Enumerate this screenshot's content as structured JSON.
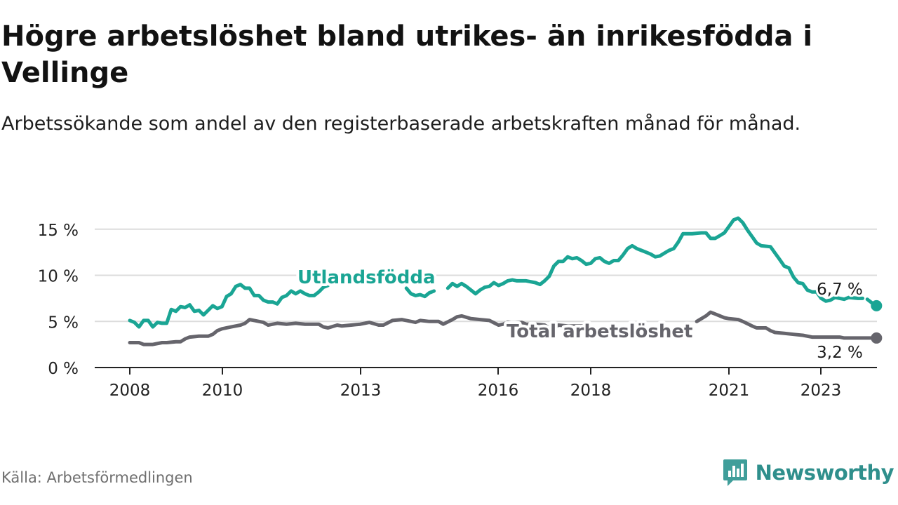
{
  "title": "Högre arbetslöshet bland utrikes- än inrikesfödda i Vellinge",
  "subtitle": "Arbetssökande som andel av den registerbaserade arbetskraften månad för månad.",
  "source": "Källa: Arbetsförmedlingen",
  "brand": "Newsworthy",
  "colors": {
    "foreign": "#1aa594",
    "total": "#66656c",
    "grid": "#dcdcdc",
    "axis": "#222222",
    "brand": "#2f8f8c"
  },
  "chart_data": {
    "type": "line",
    "title": "Högre arbetslöshet bland utrikes- än inrikesfödda i Vellinge",
    "xlabel": "",
    "ylabel": "",
    "ylim": [
      0,
      17
    ],
    "xlim": [
      2007.8,
      2024.0
    ],
    "yticks": [
      0,
      5,
      10,
      15
    ],
    "ytick_labels": [
      "0 %",
      "5 %",
      "10 %",
      "15 %"
    ],
    "xticks": [
      2008,
      2010,
      2013,
      2016,
      2018,
      2021,
      2023
    ],
    "xtick_labels": [
      "2008",
      "2010",
      "2013",
      "2016",
      "2018",
      "2021",
      "2023"
    ],
    "series": [
      {
        "name": "Utlandsfödda",
        "label": "Utlandsfödda",
        "color": "#1aa594",
        "end_label": "6,7 %",
        "segments": [
          [
            [
              2008.0,
              5.1
            ],
            [
              2008.1,
              4.9
            ],
            [
              2008.2,
              4.4
            ],
            [
              2008.3,
              5.1
            ],
            [
              2008.4,
              5.1
            ],
            [
              2008.5,
              4.4
            ],
            [
              2008.6,
              4.9
            ],
            [
              2008.7,
              4.8
            ],
            [
              2008.8,
              4.8
            ],
            [
              2008.9,
              6.3
            ],
            [
              2009.0,
              6.1
            ],
            [
              2009.1,
              6.6
            ],
            [
              2009.2,
              6.5
            ],
            [
              2009.3,
              6.8
            ],
            [
              2009.4,
              6.1
            ],
            [
              2009.5,
              6.2
            ],
            [
              2009.6,
              5.7
            ],
            [
              2009.8,
              6.7
            ],
            [
              2009.9,
              6.4
            ],
            [
              2010.0,
              6.6
            ],
            [
              2010.1,
              7.7
            ],
            [
              2010.2,
              8.0
            ],
            [
              2010.3,
              8.8
            ],
            [
              2010.4,
              9.0
            ],
            [
              2010.5,
              8.6
            ],
            [
              2010.6,
              8.6
            ],
            [
              2010.7,
              7.8
            ],
            [
              2010.8,
              7.8
            ],
            [
              2010.9,
              7.3
            ],
            [
              2011.0,
              7.1
            ],
            [
              2011.1,
              7.1
            ],
            [
              2011.2,
              6.9
            ],
            [
              2011.3,
              7.6
            ],
            [
              2011.4,
              7.8
            ],
            [
              2011.5,
              8.3
            ],
            [
              2011.6,
              8.0
            ],
            [
              2011.7,
              8.3
            ],
            [
              2011.8,
              8.0
            ],
            [
              2011.9,
              7.8
            ],
            [
              2012.0,
              7.8
            ],
            [
              2012.1,
              8.2
            ],
            [
              2012.2,
              8.7
            ],
            [
              2012.3,
              8.9
            ]
          ],
          [
            [
              2014.0,
              8.6
            ],
            [
              2014.1,
              8.0
            ],
            [
              2014.2,
              7.8
            ],
            [
              2014.3,
              7.9
            ],
            [
              2014.4,
              7.7
            ],
            [
              2014.5,
              8.1
            ],
            [
              2014.6,
              8.3
            ]
          ],
          [
            [
              2014.9,
              8.6
            ],
            [
              2015.0,
              9.1
            ],
            [
              2015.1,
              8.8
            ],
            [
              2015.2,
              9.1
            ],
            [
              2015.3,
              8.8
            ],
            [
              2015.4,
              8.4
            ],
            [
              2015.5,
              8.0
            ],
            [
              2015.6,
              8.4
            ],
            [
              2015.7,
              8.7
            ],
            [
              2015.8,
              8.8
            ],
            [
              2015.9,
              9.2
            ],
            [
              2016.0,
              8.9
            ],
            [
              2016.1,
              9.1
            ],
            [
              2016.2,
              9.4
            ],
            [
              2016.3,
              9.5
            ],
            [
              2016.4,
              9.4
            ],
            [
              2016.6,
              9.4
            ],
            [
              2016.8,
              9.2
            ],
            [
              2016.9,
              9.0
            ],
            [
              2017.0,
              9.4
            ],
            [
              2017.1,
              9.9
            ],
            [
              2017.2,
              11.0
            ],
            [
              2017.3,
              11.5
            ],
            [
              2017.4,
              11.5
            ],
            [
              2017.5,
              12.0
            ],
            [
              2017.6,
              11.8
            ],
            [
              2017.7,
              11.9
            ],
            [
              2017.8,
              11.6
            ],
            [
              2017.9,
              11.2
            ],
            [
              2018.0,
              11.3
            ],
            [
              2018.1,
              11.8
            ],
            [
              2018.2,
              11.9
            ],
            [
              2018.3,
              11.5
            ],
            [
              2018.4,
              11.3
            ],
            [
              2018.5,
              11.6
            ],
            [
              2018.6,
              11.6
            ],
            [
              2018.7,
              12.2
            ],
            [
              2018.8,
              12.9
            ],
            [
              2018.9,
              13.2
            ],
            [
              2019.0,
              12.9
            ],
            [
              2019.1,
              12.7
            ],
            [
              2019.2,
              12.5
            ],
            [
              2019.3,
              12.3
            ],
            [
              2019.4,
              12.0
            ],
            [
              2019.5,
              12.1
            ],
            [
              2019.6,
              12.4
            ],
            [
              2019.7,
              12.7
            ],
            [
              2019.8,
              12.9
            ],
            [
              2019.9,
              13.6
            ],
            [
              2020.0,
              14.5
            ],
            [
              2020.2,
              14.5
            ],
            [
              2020.4,
              14.6
            ],
            [
              2020.5,
              14.6
            ],
            [
              2020.6,
              14.0
            ],
            [
              2020.7,
              14.0
            ],
            [
              2020.8,
              14.3
            ],
            [
              2020.9,
              14.6
            ],
            [
              2021.0,
              15.3
            ],
            [
              2021.1,
              16.0
            ],
            [
              2021.2,
              16.2
            ],
            [
              2021.3,
              15.7
            ],
            [
              2021.4,
              14.9
            ],
            [
              2021.5,
              14.2
            ],
            [
              2021.6,
              13.5
            ],
            [
              2021.7,
              13.2
            ],
            [
              2021.9,
              13.1
            ],
            [
              2022.0,
              12.4
            ],
            [
              2022.1,
              11.7
            ],
            [
              2022.2,
              11.0
            ],
            [
              2022.3,
              10.8
            ],
            [
              2022.4,
              9.8
            ],
            [
              2022.5,
              9.2
            ],
            [
              2022.6,
              9.1
            ],
            [
              2022.7,
              8.4
            ],
            [
              2022.8,
              8.2
            ],
            [
              2022.9,
              8.2
            ],
            [
              2023.0,
              7.5
            ],
            [
              2023.1,
              7.2
            ],
            [
              2023.2,
              7.3
            ],
            [
              2023.3,
              7.6
            ],
            [
              2023.5,
              7.4
            ],
            [
              2023.6,
              7.6
            ],
            [
              2023.8,
              7.5
            ],
            [
              2023.9,
              7.5
            ]
          ],
          [
            [
              2024.0,
              7.4
            ],
            [
              2024.1,
              7.0
            ],
            [
              2024.2,
              6.7
            ]
          ]
        ]
      },
      {
        "name": "Total arbetslöshet",
        "label": "Total arbetslöshet",
        "color": "#66656c",
        "end_label": "3,2 %",
        "segments": [
          [
            [
              2008.0,
              2.7
            ],
            [
              2008.2,
              2.7
            ],
            [
              2008.3,
              2.5
            ],
            [
              2008.5,
              2.5
            ],
            [
              2008.7,
              2.7
            ],
            [
              2008.8,
              2.7
            ],
            [
              2009.0,
              2.8
            ],
            [
              2009.1,
              2.8
            ],
            [
              2009.2,
              3.1
            ],
            [
              2009.3,
              3.3
            ],
            [
              2009.5,
              3.4
            ],
            [
              2009.7,
              3.4
            ],
            [
              2009.8,
              3.6
            ],
            [
              2009.9,
              4.0
            ],
            [
              2010.0,
              4.2
            ],
            [
              2010.2,
              4.4
            ],
            [
              2010.4,
              4.6
            ],
            [
              2010.5,
              4.8
            ],
            [
              2010.6,
              5.2
            ],
            [
              2010.7,
              5.1
            ],
            [
              2010.9,
              4.9
            ],
            [
              2011.0,
              4.6
            ],
            [
              2011.2,
              4.8
            ],
            [
              2011.4,
              4.7
            ],
            [
              2011.6,
              4.8
            ],
            [
              2011.8,
              4.7
            ],
            [
              2012.0,
              4.7
            ],
            [
              2012.1,
              4.7
            ],
            [
              2012.2,
              4.4
            ],
            [
              2012.3,
              4.3
            ],
            [
              2012.5,
              4.6
            ],
            [
              2012.6,
              4.5
            ],
            [
              2012.8,
              4.6
            ],
            [
              2013.0,
              4.7
            ],
            [
              2013.2,
              4.9
            ],
            [
              2013.4,
              4.6
            ],
            [
              2013.5,
              4.6
            ],
            [
              2013.7,
              5.1
            ],
            [
              2013.9,
              5.2
            ],
            [
              2014.0,
              5.1
            ],
            [
              2014.2,
              4.9
            ],
            [
              2014.3,
              5.1
            ],
            [
              2014.5,
              5.0
            ],
            [
              2014.7,
              5.0
            ],
            [
              2014.8,
              4.7
            ],
            [
              2015.0,
              5.2
            ],
            [
              2015.1,
              5.5
            ],
            [
              2015.2,
              5.6
            ],
            [
              2015.4,
              5.3
            ],
            [
              2015.6,
              5.2
            ],
            [
              2015.8,
              5.1
            ],
            [
              2016.0,
              4.6
            ],
            [
              2016.1,
              4.7
            ],
            [
              2016.2,
              4.9
            ],
            [
              2016.3,
              4.8
            ],
            [
              2016.5,
              4.9
            ],
            [
              2016.6,
              4.7
            ],
            [
              2016.8,
              4.7
            ],
            [
              2017.0,
              4.6
            ],
            [
              2017.1,
              4.3
            ],
            [
              2017.2,
              4.3
            ],
            [
              2017.3,
              4.6
            ],
            [
              2017.5,
              4.5
            ],
            [
              2017.7,
              4.5
            ],
            [
              2017.8,
              4.5
            ],
            [
              2017.9,
              4.5
            ]
          ],
          [
            [
              2020.3,
              5.0
            ],
            [
              2020.5,
              5.6
            ],
            [
              2020.6,
              6.0
            ],
            [
              2020.7,
              5.8
            ],
            [
              2020.9,
              5.4
            ],
            [
              2021.0,
              5.3
            ],
            [
              2021.2,
              5.2
            ],
            [
              2021.3,
              5.0
            ],
            [
              2021.5,
              4.5
            ],
            [
              2021.6,
              4.3
            ],
            [
              2021.8,
              4.3
            ],
            [
              2021.9,
              4.0
            ],
            [
              2022.0,
              3.8
            ],
            [
              2022.2,
              3.7
            ],
            [
              2022.4,
              3.6
            ],
            [
              2022.6,
              3.5
            ],
            [
              2022.8,
              3.3
            ],
            [
              2022.9,
              3.3
            ],
            [
              2023.1,
              3.3
            ],
            [
              2023.3,
              3.3
            ],
            [
              2023.4,
              3.3
            ],
            [
              2023.5,
              3.2
            ],
            [
              2023.7,
              3.2
            ],
            [
              2023.9,
              3.2
            ],
            [
              2024.0,
              3.2
            ],
            [
              2024.2,
              3.2
            ]
          ]
        ]
      }
    ]
  }
}
